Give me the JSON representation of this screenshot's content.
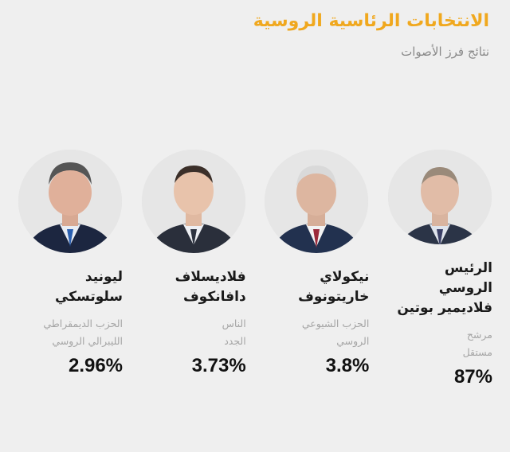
{
  "header": {
    "title": "الانتخابات الرئاسية الروسية",
    "subtitle": "نتائج فرز الأصوات"
  },
  "candidates": [
    {
      "name": "الرئيس الروسي\nفلاديمير بوتين",
      "party": "مرشح\nمستقل",
      "percent": "87%",
      "accent": "#4a5a7a"
    },
    {
      "name": "نيكولاي\nخاريتونوف",
      "party": "الحزب الشيوعي\nالروسي",
      "percent": "3.8%",
      "accent": "#3d4a66"
    },
    {
      "name": "فلاديسلاف\nدافانكوف",
      "party": "الناس\nالجدد",
      "percent": "3.73%",
      "accent": "#2f3544"
    },
    {
      "name": "ليونيد\nسلوتسكي",
      "party": "الحزب الديمقراطي\nالليبرالي الروسي",
      "percent": "2.96%",
      "accent": "#1f2a44"
    }
  ],
  "colors": {
    "title": "#f0a81e",
    "subtitle": "#8a8a8a",
    "background": "#efefef"
  }
}
